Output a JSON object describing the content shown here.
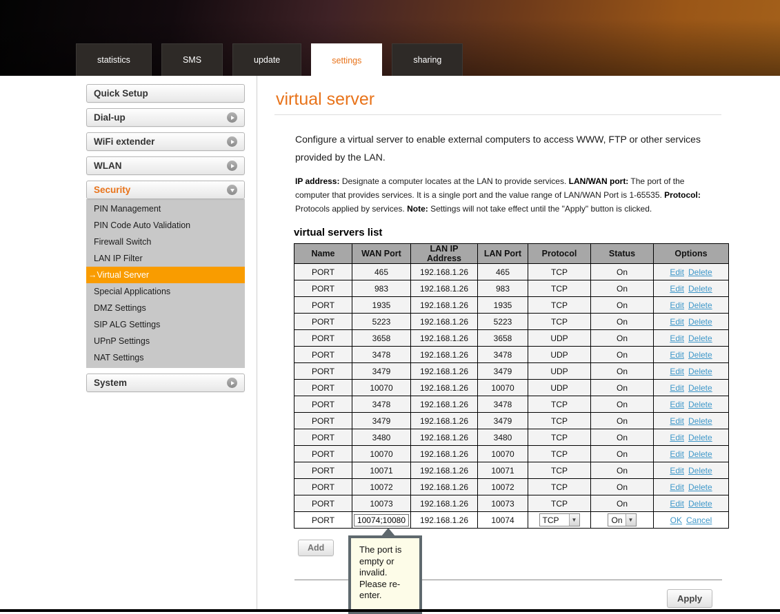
{
  "header": {
    "tabs": [
      {
        "label": "statistics",
        "active": false
      },
      {
        "label": "SMS",
        "active": false
      },
      {
        "label": "update",
        "active": false
      },
      {
        "label": "settings",
        "active": true
      },
      {
        "label": "sharing",
        "active": false
      }
    ]
  },
  "colors": {
    "accent_orange": "#e8731a",
    "selected_item_orange": "#f99c00",
    "link_blue": "#3e97c9",
    "table_header_gray": "#a7a7a7",
    "tooltip_bg": "#fdfce8",
    "tooltip_border": "#5f696e"
  },
  "sidebar": {
    "groups": [
      {
        "label": "Quick Setup",
        "arrow": "none",
        "active": false,
        "items": []
      },
      {
        "label": "Dial-up",
        "arrow": "right",
        "active": false,
        "items": []
      },
      {
        "label": "WiFi extender",
        "arrow": "right",
        "active": false,
        "items": []
      },
      {
        "label": "WLAN",
        "arrow": "right",
        "active": false,
        "items": []
      },
      {
        "label": "Security",
        "arrow": "down",
        "active": true,
        "items": [
          {
            "label": "PIN Management",
            "selected": false
          },
          {
            "label": "PIN Code Auto Validation",
            "selected": false
          },
          {
            "label": "Firewall Switch",
            "selected": false
          },
          {
            "label": "LAN IP Filter",
            "selected": false
          },
          {
            "label": "Virtual Server",
            "selected": true,
            "selected_prefix": "→"
          },
          {
            "label": "Special Applications",
            "selected": false
          },
          {
            "label": "DMZ Settings",
            "selected": false
          },
          {
            "label": "SIP ALG Settings",
            "selected": false
          },
          {
            "label": "UPnP Settings",
            "selected": false
          },
          {
            "label": "NAT Settings",
            "selected": false
          }
        ]
      },
      {
        "label": "System",
        "arrow": "right",
        "active": false,
        "items": []
      }
    ]
  },
  "main": {
    "title": "virtual server",
    "intro": "Configure a virtual server to enable external computers to access WWW, FTP or other services provided by the LAN.",
    "details": [
      {
        "bold": "IP address:",
        "text": " Designate a computer locates at the LAN to provide services. "
      },
      {
        "bold": "LAN/WAN port:",
        "text": " The port of the computer that provides services. It is a single port and the value range of LAN/WAN Port is 1-65535. "
      },
      {
        "bold": "Protocol:",
        "text": " Protocols applied by services. "
      },
      {
        "bold": "Note:",
        "text": " Settings will not take effect until the \"Apply\" button is clicked."
      }
    ],
    "list_title": "virtual servers list",
    "add_button": "Add",
    "apply_button": "Apply"
  },
  "table": {
    "headers": [
      "Name",
      "WAN Port",
      "LAN IP Address",
      "LAN Port",
      "Protocol",
      "Status",
      "Options"
    ],
    "edit_label": "Edit",
    "delete_label": "Delete",
    "rows": [
      {
        "name": "PORT",
        "wan_port": "465",
        "lan_ip": "192.168.1.26",
        "lan_port": "465",
        "protocol": "TCP",
        "status": "On"
      },
      {
        "name": "PORT",
        "wan_port": "983",
        "lan_ip": "192.168.1.26",
        "lan_port": "983",
        "protocol": "TCP",
        "status": "On"
      },
      {
        "name": "PORT",
        "wan_port": "1935",
        "lan_ip": "192.168.1.26",
        "lan_port": "1935",
        "protocol": "TCP",
        "status": "On"
      },
      {
        "name": "PORT",
        "wan_port": "5223",
        "lan_ip": "192.168.1.26",
        "lan_port": "5223",
        "protocol": "TCP",
        "status": "On"
      },
      {
        "name": "PORT",
        "wan_port": "3658",
        "lan_ip": "192.168.1.26",
        "lan_port": "3658",
        "protocol": "UDP",
        "status": "On"
      },
      {
        "name": "PORT",
        "wan_port": "3478",
        "lan_ip": "192.168.1.26",
        "lan_port": "3478",
        "protocol": "UDP",
        "status": "On"
      },
      {
        "name": "PORT",
        "wan_port": "3479",
        "lan_ip": "192.168.1.26",
        "lan_port": "3479",
        "protocol": "UDP",
        "status": "On"
      },
      {
        "name": "PORT",
        "wan_port": "10070",
        "lan_ip": "192.168.1.26",
        "lan_port": "10070",
        "protocol": "UDP",
        "status": "On"
      },
      {
        "name": "PORT",
        "wan_port": "3478",
        "lan_ip": "192.168.1.26",
        "lan_port": "3478",
        "protocol": "TCP",
        "status": "On"
      },
      {
        "name": "PORT",
        "wan_port": "3479",
        "lan_ip": "192.168.1.26",
        "lan_port": "3479",
        "protocol": "TCP",
        "status": "On"
      },
      {
        "name": "PORT",
        "wan_port": "3480",
        "lan_ip": "192.168.1.26",
        "lan_port": "3480",
        "protocol": "TCP",
        "status": "On"
      },
      {
        "name": "PORT",
        "wan_port": "10070",
        "lan_ip": "192.168.1.26",
        "lan_port": "10070",
        "protocol": "TCP",
        "status": "On"
      },
      {
        "name": "PORT",
        "wan_port": "10071",
        "lan_ip": "192.168.1.26",
        "lan_port": "10071",
        "protocol": "TCP",
        "status": "On"
      },
      {
        "name": "PORT",
        "wan_port": "10072",
        "lan_ip": "192.168.1.26",
        "lan_port": "10072",
        "protocol": "TCP",
        "status": "On"
      },
      {
        "name": "PORT",
        "wan_port": "10073",
        "lan_ip": "192.168.1.26",
        "lan_port": "10073",
        "protocol": "TCP",
        "status": "On"
      }
    ],
    "edit_row": {
      "name": "PORT",
      "wan_port_value": "10074;10080",
      "lan_ip": "192.168.1.26",
      "lan_port": "10074",
      "protocol_selected": "TCP",
      "status_selected": "On",
      "ok_label": "OK",
      "cancel_label": "Cancel"
    }
  },
  "tooltip": {
    "text": "The port is empty or invalid. Please re-enter."
  }
}
